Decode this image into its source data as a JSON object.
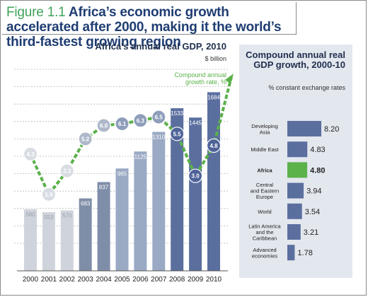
{
  "figure": {
    "number": "Figure 1.1",
    "title": "Africa’s economic growth accelerated after 2000, making it the world’s third-fastest growing region"
  },
  "chart_data": [
    {
      "type": "bar",
      "title": "Africa's annual real GDP, 2010",
      "unit": "$ billion",
      "categories": [
        "2000",
        "2001",
        "2002",
        "2003",
        "2004",
        "2005",
        "2006",
        "2007",
        "2008",
        "2009",
        "2010"
      ],
      "values": [
        580,
        553,
        570,
        683,
        837,
        965,
        1125,
        1310,
        1533,
        1445,
        1684
      ],
      "ylim": [
        0,
        1900
      ],
      "line_series": {
        "name": "Compound annual growth rate, %",
        "values": [
          4.3,
          1.9,
          3.3,
          5.2,
          6.0,
          6.1,
          6.3,
          6.5,
          5.5,
          3.0,
          4.8
        ],
        "ylim": [
          0,
          8.5
        ]
      },
      "colors": {
        "bar_light": "#cfd4dc",
        "bar_mid": "#9aa9c4",
        "bar_dark": "#5b6f9f",
        "line": "#5bb14a"
      }
    },
    {
      "type": "bar",
      "orientation": "horizontal",
      "title": "Compound annual real GDP growth, 2000-10",
      "subtitle": "% constant exchange rates",
      "categories": [
        "Developing Asia",
        "Middle East",
        "Africa",
        "Central and Eastern Europe",
        "World",
        "Latin America and the Caribbean",
        "Advanced economies"
      ],
      "values": [
        8.2,
        4.83,
        4.8,
        3.94,
        3.54,
        3.21,
        1.78
      ],
      "value_labels": [
        "8.20",
        "4.83",
        "4.80",
        "3.94",
        "3.54",
        "3.21",
        "1.78"
      ],
      "highlight": "Africa",
      "colors": {
        "bar": "#5b6f9f",
        "highlight": "#5bb14a"
      }
    }
  ]
}
